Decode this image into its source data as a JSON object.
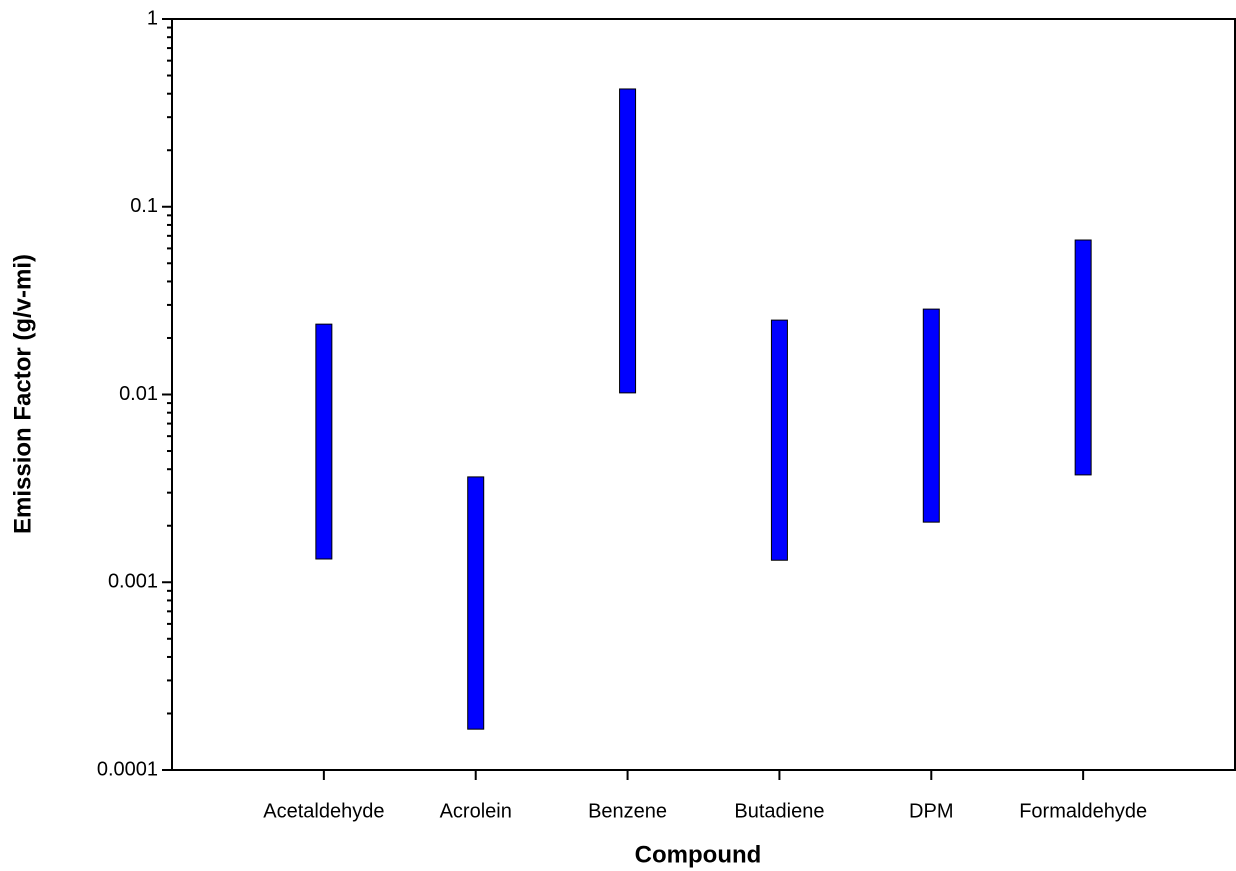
{
  "chart_data": {
    "type": "range-bar",
    "x_label": "Compound",
    "y_label": "Emission Factor (g/v-mi)",
    "categories": [
      "Acetaldehyde",
      "Acrolein",
      "Benzene",
      "Butadiene",
      "DPM",
      "Formaldehyde"
    ],
    "low": [
      0.00133,
      0.000165,
      0.0102,
      0.00131,
      0.00209,
      0.00373
    ],
    "high": [
      0.0237,
      0.00364,
      0.424,
      0.0249,
      0.0285,
      0.0665
    ],
    "color": "#0000ff",
    "ylim": [
      0.0001,
      1
    ],
    "yticks": [
      0.0001,
      0.001,
      0.01,
      0.1,
      1
    ],
    "yticks_minor": [
      0.0002,
      0.0003,
      0.0004,
      0.0005,
      0.0006,
      0.0007,
      0.0008,
      0.0009,
      0.002,
      0.003,
      0.004,
      0.005,
      0.006,
      0.007,
      0.008,
      0.009,
      0.02,
      0.03,
      0.04,
      0.05,
      0.06,
      0.07,
      0.08,
      0.09,
      0.2,
      0.3,
      0.4,
      0.5,
      0.6,
      0.7,
      0.8,
      0.9
    ],
    "log_y": true
  }
}
